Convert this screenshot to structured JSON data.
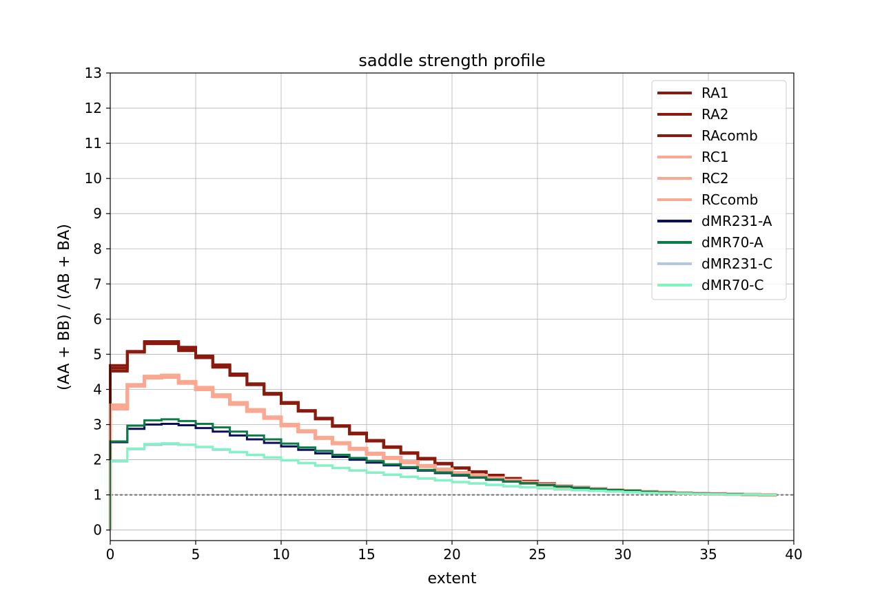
{
  "chart_data": {
    "type": "line",
    "drawstyle": "steps-post",
    "title": "saddle strength profile",
    "xlabel": "extent",
    "ylabel": "(AA + BB) / (AB + BA)",
    "xlim": [
      0,
      40
    ],
    "ylim": [
      -0.3,
      13
    ],
    "xticks": [
      0,
      5,
      10,
      15,
      20,
      25,
      30,
      35,
      40
    ],
    "yticks": [
      0,
      1,
      2,
      3,
      4,
      5,
      6,
      7,
      8,
      9,
      10,
      11,
      12,
      13
    ],
    "grid": true,
    "legend_position": "top-right",
    "reference_line": {
      "y": 1,
      "style": "dashed",
      "color": "#707070"
    },
    "series": [
      {
        "name": "RA1",
        "color": "#8b1a0e",
        "values": [
          4.52,
          5.06,
          5.3,
          5.3,
          5.1,
          4.9,
          4.63,
          4.4,
          4.13,
          3.86,
          3.6,
          3.38,
          3.16,
          2.95,
          2.73,
          2.53,
          2.35,
          2.18,
          2.02,
          1.88,
          1.76,
          1.65,
          1.54,
          1.46,
          1.38,
          1.31,
          1.25,
          1.21,
          1.17,
          1.14,
          1.12,
          1.09,
          1.07,
          1.05,
          1.04,
          1.03,
          1.02,
          1.01,
          1.0
        ]
      },
      {
        "name": "RA2",
        "color": "#8b1a0e",
        "values": [
          4.68,
          5.08,
          5.36,
          5.36,
          5.2,
          4.95,
          4.7,
          4.44,
          4.16,
          3.89,
          3.63,
          3.4,
          3.18,
          2.97,
          2.76,
          2.55,
          2.37,
          2.2,
          2.04,
          1.9,
          1.77,
          1.66,
          1.56,
          1.47,
          1.39,
          1.32,
          1.26,
          1.22,
          1.18,
          1.15,
          1.12,
          1.1,
          1.08,
          1.06,
          1.04,
          1.03,
          1.02,
          1.01,
          1.0
        ]
      },
      {
        "name": "RAcomb",
        "color": "#8b1a0e",
        "values": [
          4.6,
          5.07,
          5.33,
          5.33,
          5.15,
          4.93,
          4.66,
          4.42,
          4.14,
          3.88,
          3.62,
          3.39,
          3.17,
          2.96,
          2.75,
          2.54,
          2.36,
          2.19,
          2.03,
          1.89,
          1.76,
          1.65,
          1.55,
          1.46,
          1.38,
          1.31,
          1.25,
          1.21,
          1.17,
          1.14,
          1.12,
          1.09,
          1.07,
          1.05,
          1.04,
          1.03,
          1.02,
          1.01,
          1.0
        ]
      },
      {
        "name": "RC1",
        "color": "#fba892",
        "values": [
          3.45,
          4.1,
          4.33,
          4.35,
          4.18,
          4.0,
          3.8,
          3.58,
          3.38,
          3.18,
          2.97,
          2.8,
          2.61,
          2.46,
          2.3,
          2.16,
          2.04,
          1.92,
          1.81,
          1.71,
          1.62,
          1.54,
          1.47,
          1.4,
          1.34,
          1.28,
          1.24,
          1.2,
          1.16,
          1.13,
          1.11,
          1.09,
          1.07,
          1.05,
          1.04,
          1.03,
          1.02,
          1.01,
          1.0
        ]
      },
      {
        "name": "RC2",
        "color": "#fba892",
        "values": [
          3.55,
          4.13,
          4.37,
          4.4,
          4.22,
          4.05,
          3.84,
          3.62,
          3.42,
          3.21,
          3.0,
          2.82,
          2.63,
          2.48,
          2.32,
          2.18,
          2.06,
          1.94,
          1.83,
          1.73,
          1.63,
          1.55,
          1.48,
          1.41,
          1.35,
          1.29,
          1.25,
          1.21,
          1.17,
          1.14,
          1.12,
          1.09,
          1.07,
          1.05,
          1.04,
          1.03,
          1.02,
          1.01,
          1.0
        ]
      },
      {
        "name": "RCcomb",
        "color": "#fba892",
        "values": [
          3.5,
          4.12,
          4.35,
          4.37,
          4.2,
          4.02,
          3.82,
          3.6,
          3.4,
          3.2,
          2.99,
          2.81,
          2.62,
          2.47,
          2.31,
          2.17,
          2.05,
          1.93,
          1.82,
          1.72,
          1.63,
          1.55,
          1.47,
          1.41,
          1.34,
          1.29,
          1.24,
          1.2,
          1.16,
          1.13,
          1.11,
          1.09,
          1.07,
          1.05,
          1.04,
          1.03,
          1.02,
          1.01,
          1.0
        ]
      },
      {
        "name": "dMR231-A",
        "color": "#0b0f5c",
        "values": [
          2.5,
          2.88,
          3.0,
          3.02,
          2.98,
          2.9,
          2.8,
          2.69,
          2.58,
          2.48,
          2.38,
          2.28,
          2.18,
          2.08,
          2.0,
          1.92,
          1.84,
          1.76,
          1.69,
          1.62,
          1.55,
          1.49,
          1.43,
          1.38,
          1.33,
          1.28,
          1.24,
          1.2,
          1.17,
          1.14,
          1.12,
          1.09,
          1.07,
          1.05,
          1.04,
          1.03,
          1.02,
          1.01,
          1.0
        ]
      },
      {
        "name": "dMR70-A",
        "color": "#0b7a45",
        "values": [
          2.52,
          2.97,
          3.12,
          3.15,
          3.1,
          3.02,
          2.92,
          2.8,
          2.69,
          2.58,
          2.46,
          2.35,
          2.25,
          2.14,
          2.05,
          1.96,
          1.87,
          1.79,
          1.71,
          1.64,
          1.57,
          1.5,
          1.44,
          1.38,
          1.33,
          1.28,
          1.24,
          1.2,
          1.17,
          1.14,
          1.12,
          1.09,
          1.07,
          1.05,
          1.04,
          1.03,
          1.02,
          1.01,
          1.0
        ]
      },
      {
        "name": "dMR231-C",
        "color": "#b3c6e2",
        "values": [
          1.95,
          2.3,
          2.42,
          2.44,
          2.42,
          2.36,
          2.28,
          2.21,
          2.13,
          2.06,
          1.98,
          1.9,
          1.83,
          1.76,
          1.69,
          1.63,
          1.57,
          1.51,
          1.46,
          1.41,
          1.36,
          1.32,
          1.28,
          1.24,
          1.21,
          1.18,
          1.15,
          1.13,
          1.11,
          1.09,
          1.07,
          1.06,
          1.05,
          1.04,
          1.03,
          1.02,
          1.01,
          1.01,
          1.0
        ]
      },
      {
        "name": "dMR70-C",
        "color": "#7ef6c2",
        "values": [
          1.97,
          2.32,
          2.45,
          2.47,
          2.43,
          2.37,
          2.3,
          2.22,
          2.14,
          2.07,
          1.99,
          1.91,
          1.84,
          1.77,
          1.7,
          1.64,
          1.58,
          1.52,
          1.47,
          1.42,
          1.37,
          1.33,
          1.29,
          1.25,
          1.22,
          1.19,
          1.16,
          1.14,
          1.12,
          1.1,
          1.08,
          1.06,
          1.05,
          1.04,
          1.03,
          1.02,
          1.01,
          1.01,
          1.0
        ]
      }
    ]
  }
}
